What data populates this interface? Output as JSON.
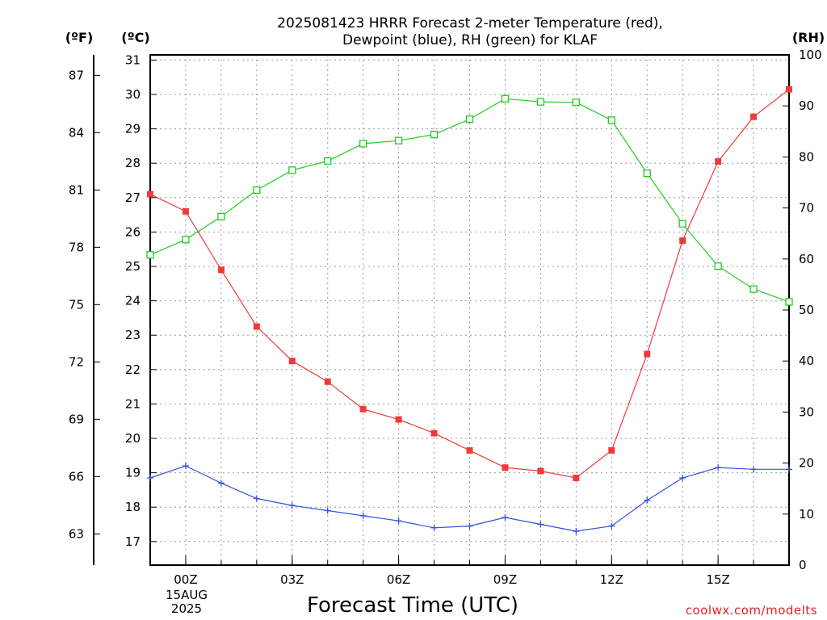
{
  "chart_data": {
    "type": "line",
    "title_lines": [
      "2025081423 HRRR Forecast 2-meter Temperature (red),",
      "Dewpoint (blue), RH (green) for KLAF"
    ],
    "xlabel": "Forecast Time (UTC)",
    "credit": "coolwx.com/modelts",
    "x_ticks": [
      "00Z",
      "03Z",
      "06Z",
      "09Z",
      "12Z",
      "15Z"
    ],
    "x_date_lines": [
      "15AUG",
      "2025"
    ],
    "x_range_hours": [
      -1,
      17
    ],
    "units": {
      "fahrenheit": "(ºF)",
      "celsius": "(ºC)",
      "rh": "(RH)"
    },
    "axes": {
      "celsius": {
        "ticks": [
          17,
          18,
          19,
          20,
          21,
          22,
          23,
          24,
          25,
          26,
          27,
          28,
          29,
          30,
          31
        ]
      },
      "fahrenheit": {
        "ticks": [
          63,
          66,
          69,
          72,
          75,
          78,
          81,
          84,
          87
        ]
      },
      "rh": {
        "range": [
          0,
          100
        ],
        "ticks": [
          0,
          10,
          20,
          30,
          40,
          50,
          60,
          70,
          80,
          90,
          100
        ]
      }
    },
    "grid": true,
    "x": [
      "2025-08-14 23Z",
      "2025-08-15 00Z",
      "2025-08-15 01Z",
      "2025-08-15 02Z",
      "2025-08-15 03Z",
      "2025-08-15 04Z",
      "2025-08-15 05Z",
      "2025-08-15 06Z",
      "2025-08-15 07Z",
      "2025-08-15 08Z",
      "2025-08-15 09Z",
      "2025-08-15 10Z",
      "2025-08-15 11Z",
      "2025-08-15 12Z",
      "2025-08-15 13Z",
      "2025-08-15 14Z",
      "2025-08-15 15Z",
      "2025-08-15 16Z",
      "2025-08-15 17Z"
    ],
    "series": [
      {
        "name": "Temperature",
        "axis": "celsius",
        "color": "#f03a3a",
        "marker": "filled-square",
        "values": [
          27.1,
          26.6,
          24.9,
          23.25,
          22.25,
          21.65,
          20.85,
          20.55,
          20.15,
          19.65,
          19.15,
          19.05,
          18.85,
          19.65,
          22.45,
          25.75,
          28.05,
          29.35,
          30.15
        ]
      },
      {
        "name": "Dewpoint",
        "axis": "celsius",
        "color": "#3050e0",
        "marker": "plus",
        "values": [
          18.85,
          19.2,
          18.7,
          18.25,
          18.05,
          17.9,
          17.75,
          17.6,
          17.4,
          17.45,
          17.7,
          17.5,
          17.3,
          17.45,
          18.2,
          18.85,
          19.15,
          19.1,
          19.1
        ]
      },
      {
        "name": "RH",
        "axis": "rh",
        "color": "#22cc22",
        "marker": "open-square",
        "values": [
          60.8,
          63.8,
          68.3,
          73.5,
          77.4,
          79.2,
          82.6,
          83.2,
          84.4,
          87.4,
          91.4,
          90.8,
          90.7,
          87.2,
          76.8,
          66.9,
          58.6,
          54.1,
          51.6
        ]
      }
    ]
  }
}
